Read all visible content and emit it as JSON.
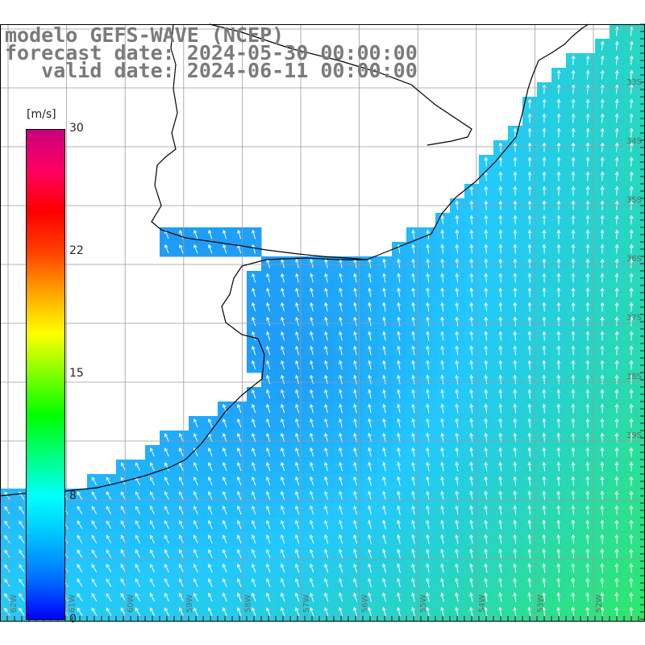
{
  "title": {
    "line1": "modelo GEFS-WAVE (NCEP)",
    "line2": "forecast date: 2024-05-30 00:00:00",
    "line3": "   valid date: 2024-06-11 00:00:00"
  },
  "colorbar": {
    "unit": "[m/s]",
    "ticks": [
      "30",
      "22",
      "15",
      "8",
      "0"
    ],
    "colors": [
      "#0000ff",
      "#0070ff",
      "#00bfff",
      "#00ffff",
      "#00ff80",
      "#00ff00",
      "#80ff00",
      "#ffff00",
      "#ffa500",
      "#ff4000",
      "#ff0000",
      "#ff0060",
      "#c8007f"
    ]
  },
  "map": {
    "ocean_low": "#1a6cf0",
    "ocean_mid": "#22c8ff",
    "ocean_high": "#2ee86a",
    "land_color": "#ffffff",
    "grid_color": "#9a9a9a",
    "lat_labels": [
      "33S",
      "34S",
      "35S",
      "36S",
      "37S",
      "38S",
      "39S"
    ],
    "lon_labels": [
      "62W",
      "61W",
      "60W",
      "59W",
      "58W",
      "57W",
      "56W",
      "55W",
      "54W",
      "53W",
      "52W"
    ]
  }
}
